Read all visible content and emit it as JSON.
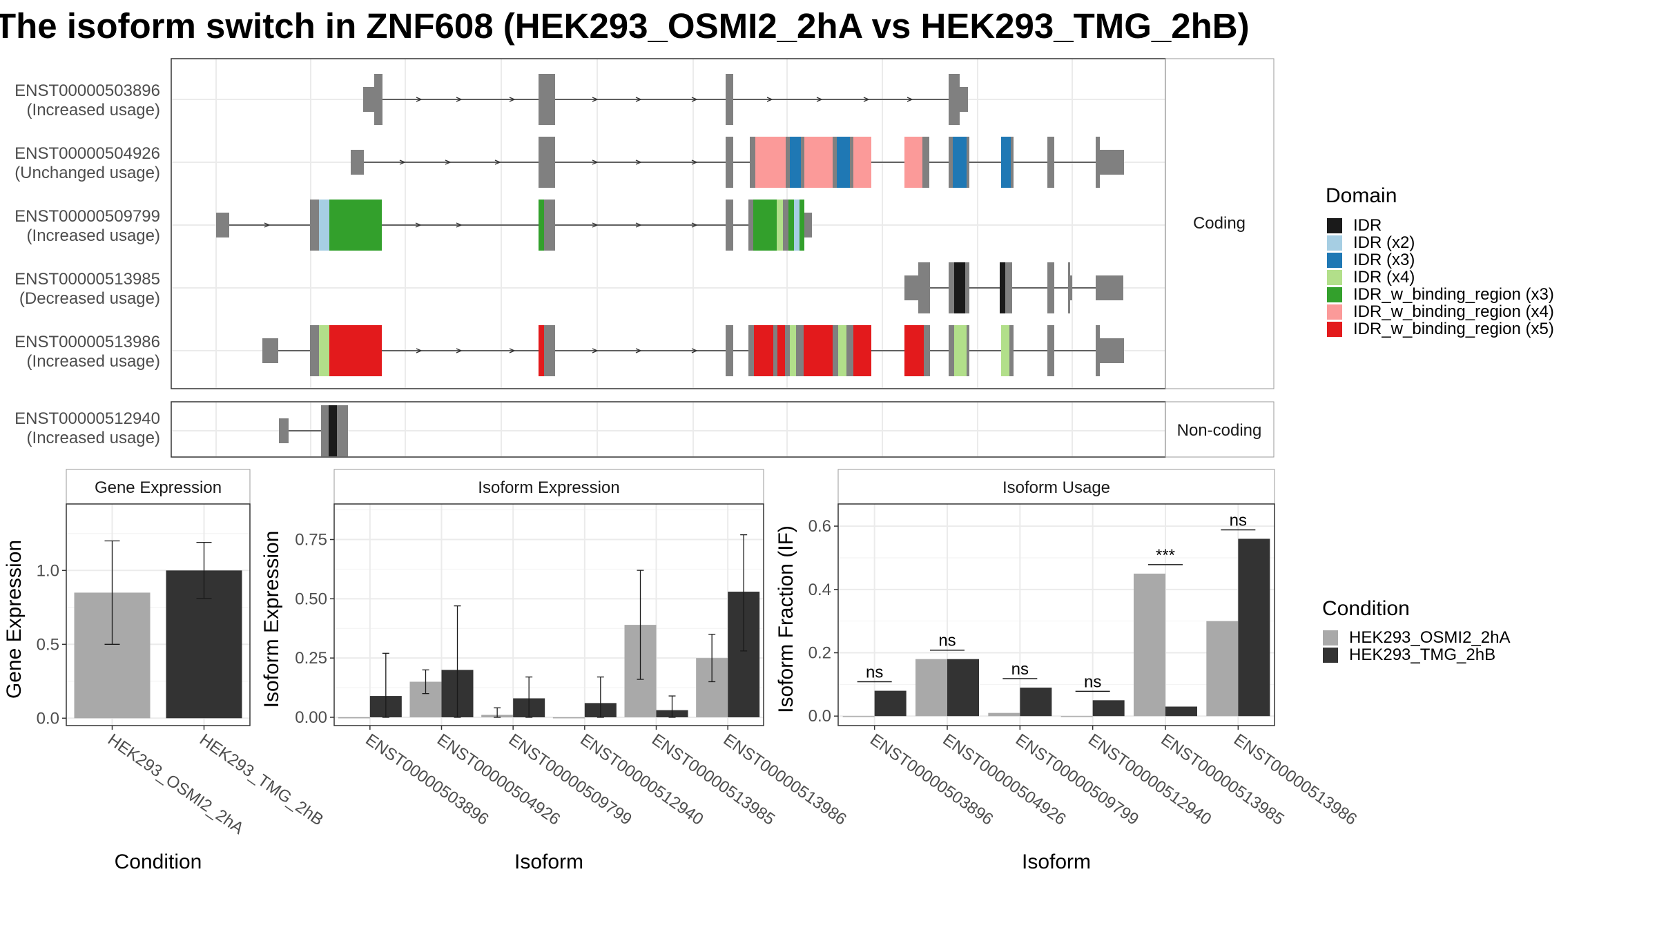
{
  "title": "The isoform switch in ZNF608 (HEK293_OSMI2_2hA vs HEK293_TMG_2hB)",
  "colors": {
    "IDR": "#1a1a1a",
    "IDR (x2)": "#a6cee3",
    "IDR (x3)": "#1f78b4",
    "IDR (x4)": "#b2df8a",
    "IDR_w_binding_region (x3)": "#33a02c",
    "IDR_w_binding_region (x4)": "#fb9a99",
    "IDR_w_binding_region (x5)": "#e31a1c",
    "exon": "#808080",
    "cond1": "#a9a9a9",
    "cond2": "#333333"
  },
  "facets": {
    "coding": "Coding",
    "noncoding": "Non-coding"
  },
  "transcripts": [
    {
      "id": "ENST00000503896",
      "note": "(Increased usage)",
      "group": "coding"
    },
    {
      "id": "ENST00000504926",
      "note": "(Unchanged usage)",
      "group": "coding"
    },
    {
      "id": "ENST00000509799",
      "note": "(Increased usage)",
      "group": "coding"
    },
    {
      "id": "ENST00000513985",
      "note": "(Decreased usage)",
      "group": "coding"
    },
    {
      "id": "ENST00000513986",
      "note": "(Increased usage)",
      "group": "coding"
    },
    {
      "id": "ENST00000512940",
      "note": "(Increased usage)",
      "group": "noncoding"
    }
  ],
  "domain_legend": {
    "title": "Domain",
    "items": [
      "IDR",
      "IDR (x2)",
      "IDR (x3)",
      "IDR (x4)",
      "IDR_w_binding_region (x3)",
      "IDR_w_binding_region (x4)",
      "IDR_w_binding_region (x5)"
    ]
  },
  "condition_legend": {
    "title": "Condition",
    "items": [
      "HEK293_OSMI2_2hA",
      "HEK293_TMG_2hB"
    ]
  },
  "chart_data": [
    {
      "type": "bar",
      "title": "Gene Expression",
      "xlabel": "Condition",
      "ylabel": "Gene Expression",
      "categories": [
        "HEK293_OSMI2_2hA",
        "HEK293_TMG_2hB"
      ],
      "values": [
        0.85,
        1.0
      ],
      "err_low": [
        0.5,
        0.81
      ],
      "err_high": [
        1.2,
        1.19
      ],
      "ylim": [
        -0.05,
        1.45
      ],
      "yticks": [
        "0.0",
        "0.5",
        "1.0"
      ],
      "grid": true
    },
    {
      "type": "bar",
      "title": "Isoform Expression",
      "xlabel": "Isoform",
      "ylabel": "Isoform Expression",
      "categories": [
        "ENST00000503896",
        "ENST00000504926",
        "ENST00000509799",
        "ENST00000512940",
        "ENST00000513985",
        "ENST00000513986"
      ],
      "series": [
        {
          "name": "HEK293_OSMI2_2hA",
          "values": [
            0.0,
            0.15,
            0.01,
            0.0,
            0.39,
            0.25
          ],
          "err_low": [
            null,
            0.1,
            0.0,
            null,
            0.16,
            0.15
          ],
          "err_high": [
            null,
            0.2,
            0.04,
            null,
            0.62,
            0.35
          ]
        },
        {
          "name": "HEK293_TMG_2hB",
          "values": [
            0.09,
            0.2,
            0.08,
            0.06,
            0.03,
            0.53
          ],
          "err_low": [
            0.0,
            0.0,
            0.0,
            0.0,
            0.0,
            0.28
          ],
          "err_high": [
            0.27,
            0.47,
            0.17,
            0.17,
            0.09,
            0.77
          ]
        }
      ],
      "ylim": [
        -0.035,
        0.9
      ],
      "yticks": [
        "0.00",
        "0.25",
        "0.50",
        "0.75"
      ],
      "grid": true
    },
    {
      "type": "bar",
      "title": "Isoform Usage",
      "xlabel": "Isoform",
      "ylabel": "Isoform Fraction (IF)",
      "categories": [
        "ENST00000503896",
        "ENST00000504926",
        "ENST00000509799",
        "ENST00000512940",
        "ENST00000513985",
        "ENST00000513986"
      ],
      "series": [
        {
          "name": "HEK293_OSMI2_2hA",
          "values": [
            0.0,
            0.18,
            0.01,
            0.0,
            0.45,
            0.3
          ]
        },
        {
          "name": "HEK293_TMG_2hB",
          "values": [
            0.08,
            0.18,
            0.09,
            0.05,
            0.03,
            0.56
          ]
        }
      ],
      "significance": [
        "ns",
        "ns",
        "ns",
        "ns",
        "***",
        "ns"
      ],
      "ylim": [
        -0.03,
        0.67
      ],
      "yticks": [
        "0.0",
        "0.2",
        "0.4",
        "0.6"
      ],
      "grid": true
    }
  ]
}
